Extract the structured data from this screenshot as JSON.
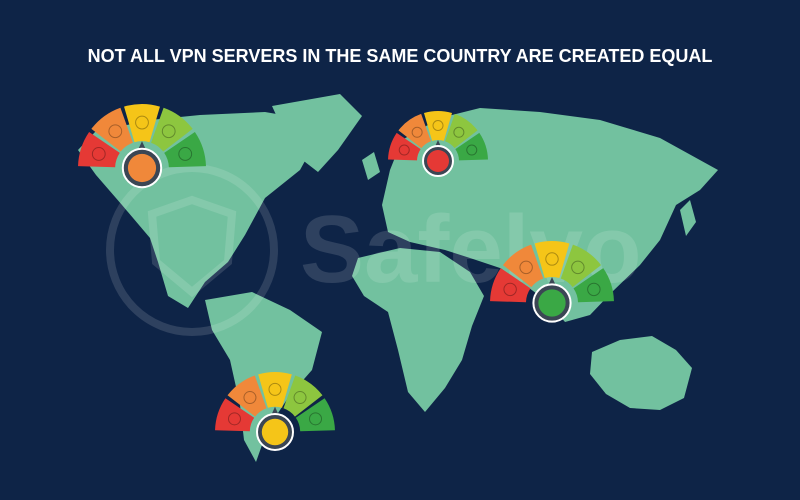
{
  "header": {
    "title": "NOT ALL VPN SERVERS IN THE SAME COUNTRY ARE CREATED EQUAL"
  },
  "watermark": {
    "text": "Safelvo"
  }
}
